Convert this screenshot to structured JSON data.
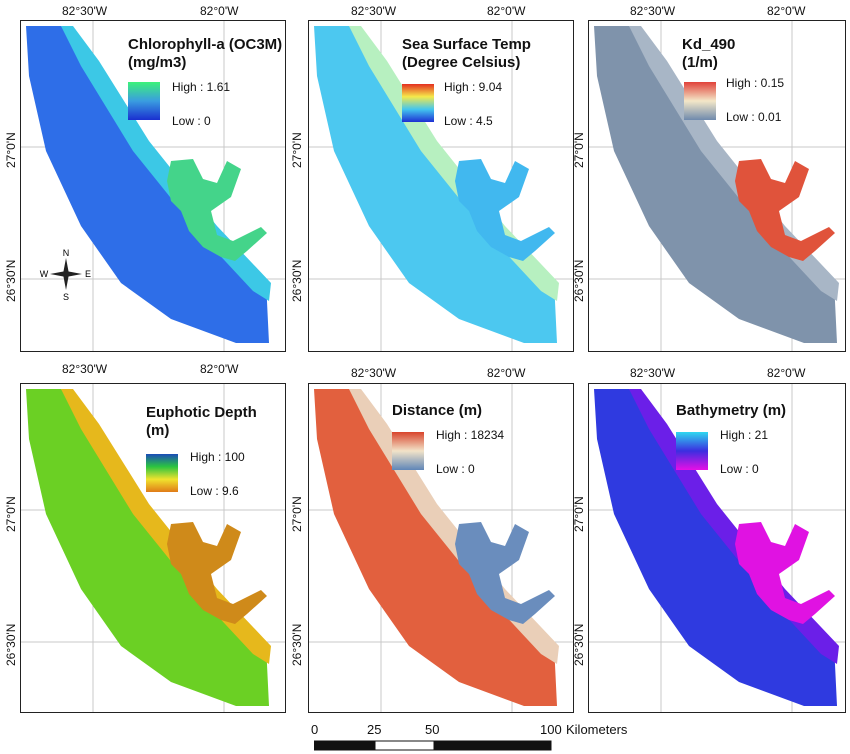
{
  "lon_labels": [
    "82°30'W",
    "82°0'W"
  ],
  "lat_labels": [
    "27°0'N",
    "26°30'N"
  ],
  "panels": [
    {
      "id": "chl",
      "title": [
        "Chlorophyll-a (OC3M)",
        "(mg/m3)"
      ],
      "high": "High : 1.61",
      "low": "Low : 0",
      "ramp": [
        "#3df27a",
        "#3a9de0",
        "#1a2fd0"
      ],
      "fill_offshore": "#2e6ee8",
      "fill_inshore": "#3cc8e6",
      "fill_bay": "#44d48a"
    },
    {
      "id": "sst",
      "title": [
        "Sea Surface Temp",
        "(Degree Celsius)"
      ],
      "high": "High : 9.04",
      "low": "Low : 4.5",
      "ramp": [
        "#e43020",
        "#f5e94a",
        "#43c6ef",
        "#1d2fd3"
      ],
      "fill_offshore": "#4cc8f0",
      "fill_inshore": "#b7f0c0",
      "fill_bay": "#41b8ef"
    },
    {
      "id": "kd490",
      "title": [
        "Kd_490",
        "(1/m)"
      ],
      "high": "High : 0.15",
      "low": "Low : 0.01",
      "ramp": [
        "#e0423a",
        "#f3e7c8",
        "#6e8aad"
      ],
      "fill_offshore": "#7f93ab",
      "fill_inshore": "#a8b6c6",
      "fill_bay": "#e0533b"
    },
    {
      "id": "zeu",
      "title": [
        "Euphotic Depth",
        "(m)"
      ],
      "high": "High : 100",
      "low": "Low : 9.6",
      "ramp": [
        "#1a4cb8",
        "#2cc440",
        "#f0e32e",
        "#e07b18"
      ],
      "fill_offshore": "#6bd024",
      "fill_inshore": "#e6b81c",
      "fill_bay": "#cf8a1a"
    },
    {
      "id": "dist",
      "title": [
        "Distance (m)"
      ],
      "high": "High : 18234",
      "low": "Low : 0",
      "ramp": [
        "#d8442c",
        "#f2e3c8",
        "#5f86b8"
      ],
      "fill_offshore": "#e2603e",
      "fill_inshore": "#eacfb8",
      "fill_bay": "#6a8dbd"
    },
    {
      "id": "bathy",
      "title": [
        "Bathymetry (m)"
      ],
      "high": "High : 21",
      "low": "Low : 0",
      "ramp": [
        "#2ed8f0",
        "#3b2ee0",
        "#e60fe6"
      ],
      "fill_offshore": "#2f3ae0",
      "fill_inshore": "#6b1fe8",
      "fill_bay": "#e012e2"
    }
  ],
  "compass": {
    "n": "N",
    "s": "S",
    "e": "E",
    "w": "W"
  },
  "scalebar": {
    "ticks": [
      "0",
      "25",
      "50",
      "100"
    ],
    "unit": "Kilometers"
  }
}
